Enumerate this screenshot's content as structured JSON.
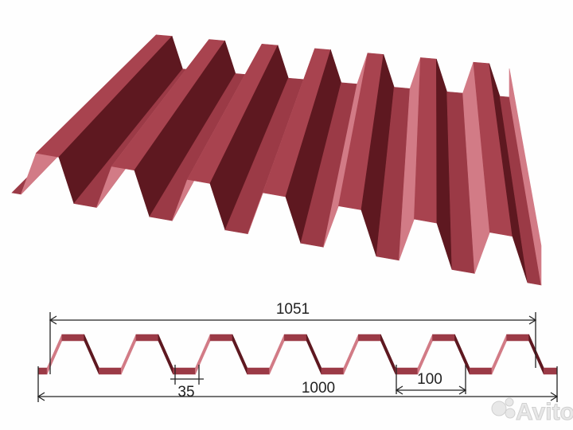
{
  "dimensions": {
    "overall_width": "1051",
    "effective_width": "1000",
    "rib_top": "35",
    "rib_pitch": "100"
  },
  "watermark": "Avito",
  "colors": {
    "sheet": "#9b3a46",
    "light": "#d27b86",
    "dark": "#5e1820",
    "line": "#222222"
  }
}
